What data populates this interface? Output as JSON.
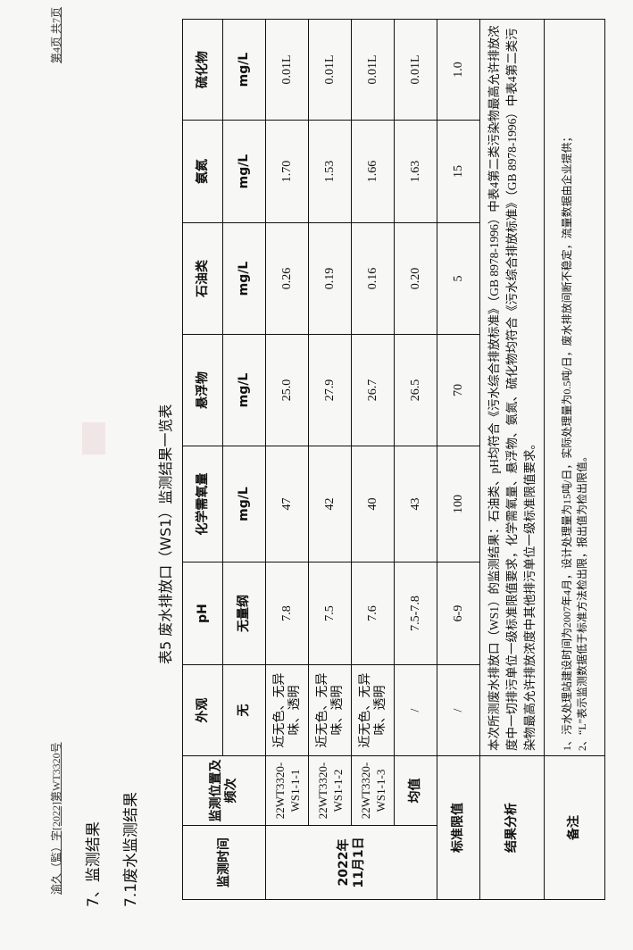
{
  "header": {
    "doc_number": "渝久（監）字[2022]第WT3320号",
    "page_info": "第4页 共7页"
  },
  "sections": {
    "s7": "7、监测结果",
    "s71": "7.1废水监测结果"
  },
  "table_title": "表5 废水排放口（WS1）监测结果一览表",
  "table": {
    "col_time": "监测时间",
    "col_position": "监测位置及频次",
    "params": [
      {
        "name": "外观",
        "unit": "无"
      },
      {
        "name": "pH",
        "unit": "无量纲"
      },
      {
        "name": "化学需氧量",
        "unit": "mg/L"
      },
      {
        "name": "悬浮物",
        "unit": "mg/L"
      },
      {
        "name": "石油类",
        "unit": "mg/L"
      },
      {
        "name": "氨氮",
        "unit": "mg/L"
      },
      {
        "name": "硫化物",
        "unit": "mg/L"
      }
    ],
    "date": "2022年\n11月1日",
    "rows": [
      {
        "id": "22WT3320-WS1-1-1",
        "values": [
          "近无色、无异味、透明",
          "7.8",
          "47",
          "25.0",
          "0.26",
          "1.70",
          "0.01L"
        ]
      },
      {
        "id": "22WT3320-WS1-1-2",
        "values": [
          "近无色、无异味、透明",
          "7.5",
          "42",
          "27.9",
          "0.19",
          "1.53",
          "0.01L"
        ]
      },
      {
        "id": "22WT3320-WS1-1-3",
        "values": [
          "近无色、无异味、透明",
          "7.6",
          "40",
          "26.7",
          "0.16",
          "1.66",
          "0.01L"
        ]
      }
    ],
    "mean": {
      "label": "均值",
      "values": [
        "/",
        "7.5-7.8",
        "43",
        "26.5",
        "0.20",
        "1.63",
        "0.01L"
      ]
    },
    "standard": {
      "label": "标准限值",
      "values": [
        "/",
        "6-9",
        "100",
        "70",
        "5",
        "15",
        "1.0"
      ]
    },
    "analysis": {
      "label": "结果分析",
      "text": "本次所测废水排放口（WS1）的监测结果：石油类、pH均符合《污水综合排放标准》（GB 8978-1996）中表4第二类污染物最高允许排放浓度中一切排污单位一级标准限值要求，化学需氧量、悬浮物、氨氮、硫化物均符合《污水综合排放标准》（GB 8978-1996）中表4第二类污染物最高允许排放浓度中其他排污单位一级标准限值要求。"
    },
    "remarks": {
      "label": "备注",
      "lines": [
        "1、污水处理站建设时间为2007年4月，设计处理量为15吨/日，实际处理量为0.5吨/日，废水排放间断不稳定，流量数据由企业提供；",
        "2、“L”表示监测数据低于标准方法检出限，报出值为检出限值。"
      ]
    }
  }
}
